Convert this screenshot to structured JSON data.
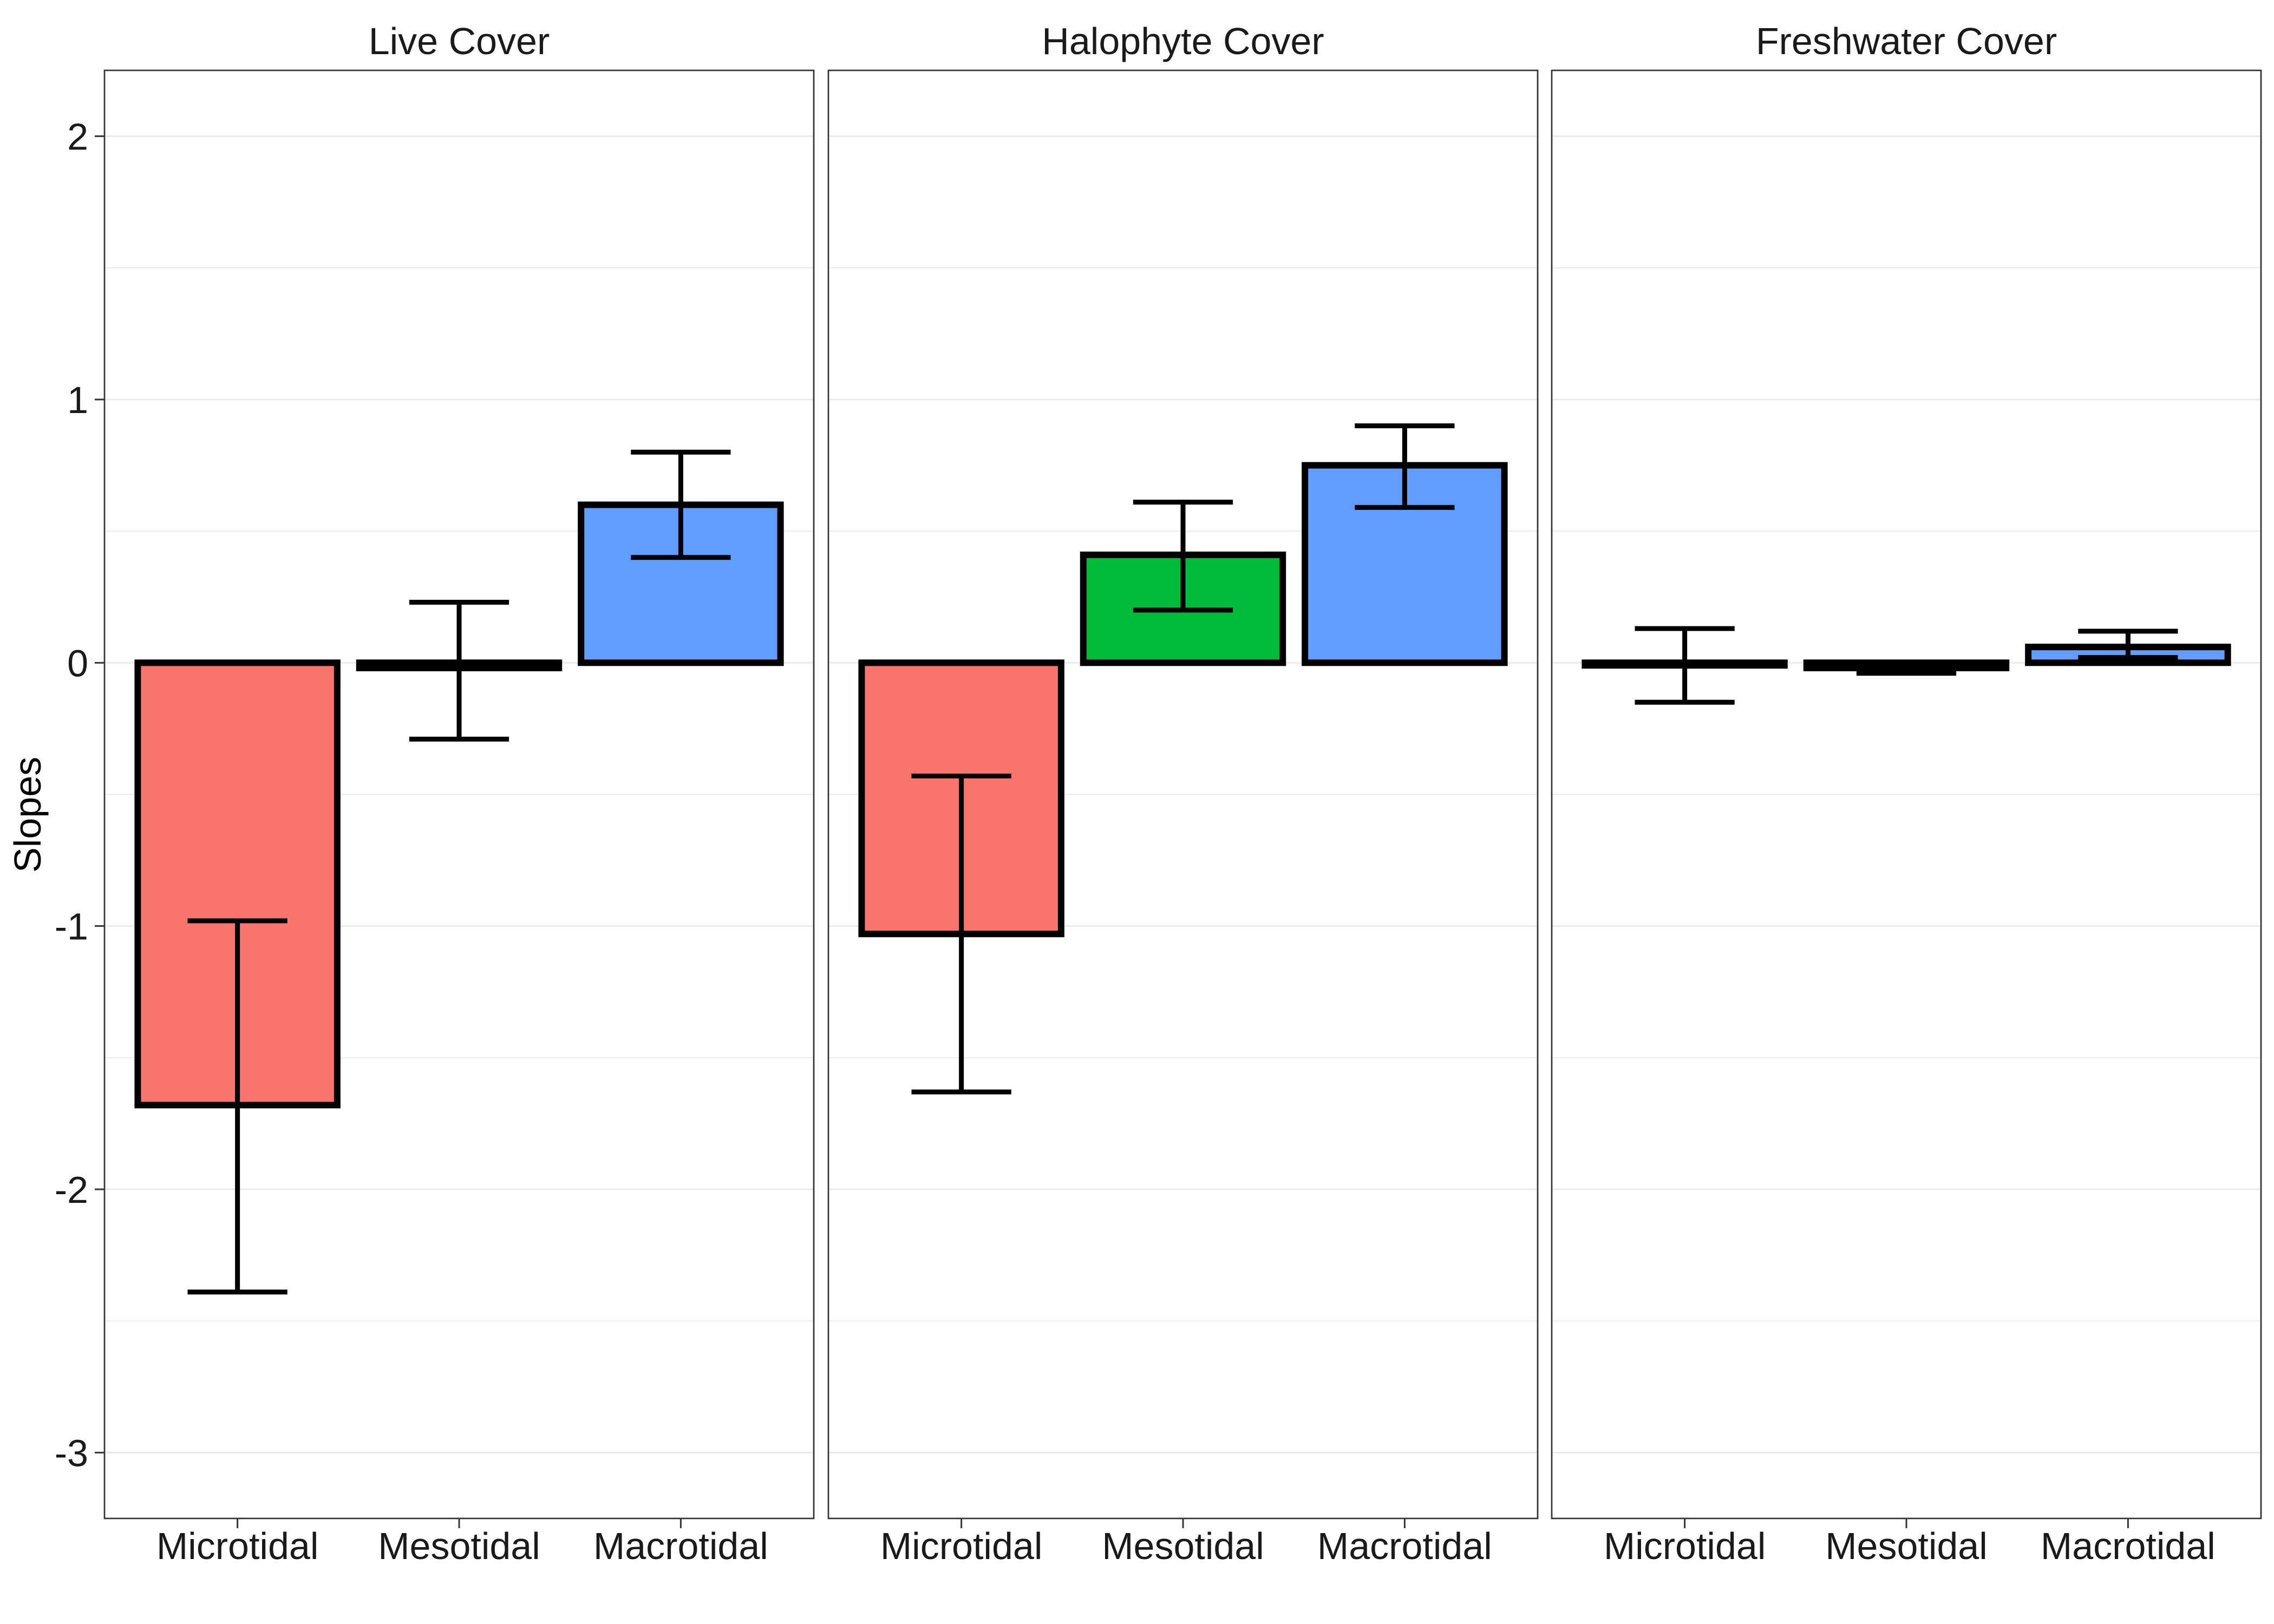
{
  "chart_data": {
    "type": "bar",
    "layout": "faceted (3 panels, shared y-axis)",
    "ylabel": "Slopes",
    "xlabel": "",
    "ylim": [
      -3.25,
      2.25
    ],
    "yticks": [
      -3,
      -2,
      -1,
      0,
      1,
      2
    ],
    "ytick_labels": [
      "-3",
      "-2",
      "-1",
      "0",
      "1",
      "2"
    ],
    "categories": [
      "Microtidal",
      "Mesotidal",
      "Macrotidal"
    ],
    "colors": {
      "Microtidal": "#F8766D",
      "Mesotidal": "#00BA38",
      "Macrotidal": "#619CFF"
    },
    "panels": [
      {
        "title": "Live Cover",
        "values": [
          -1.68,
          -0.02,
          0.6
        ],
        "error_lower": [
          -2.39,
          -0.29,
          0.4
        ],
        "error_upper": [
          -0.98,
          0.23,
          0.8
        ]
      },
      {
        "title": "Halophyte Cover",
        "values": [
          -1.03,
          0.41,
          0.75
        ],
        "error_lower": [
          -1.63,
          0.2,
          0.59
        ],
        "error_upper": [
          -0.43,
          0.61,
          0.9
        ]
      },
      {
        "title": "Freshwater Cover",
        "values": [
          -0.01,
          -0.02,
          0.06
        ],
        "error_lower": [
          -0.15,
          -0.04,
          0.02
        ],
        "error_upper": [
          0.13,
          0.0,
          0.12
        ]
      }
    ]
  }
}
